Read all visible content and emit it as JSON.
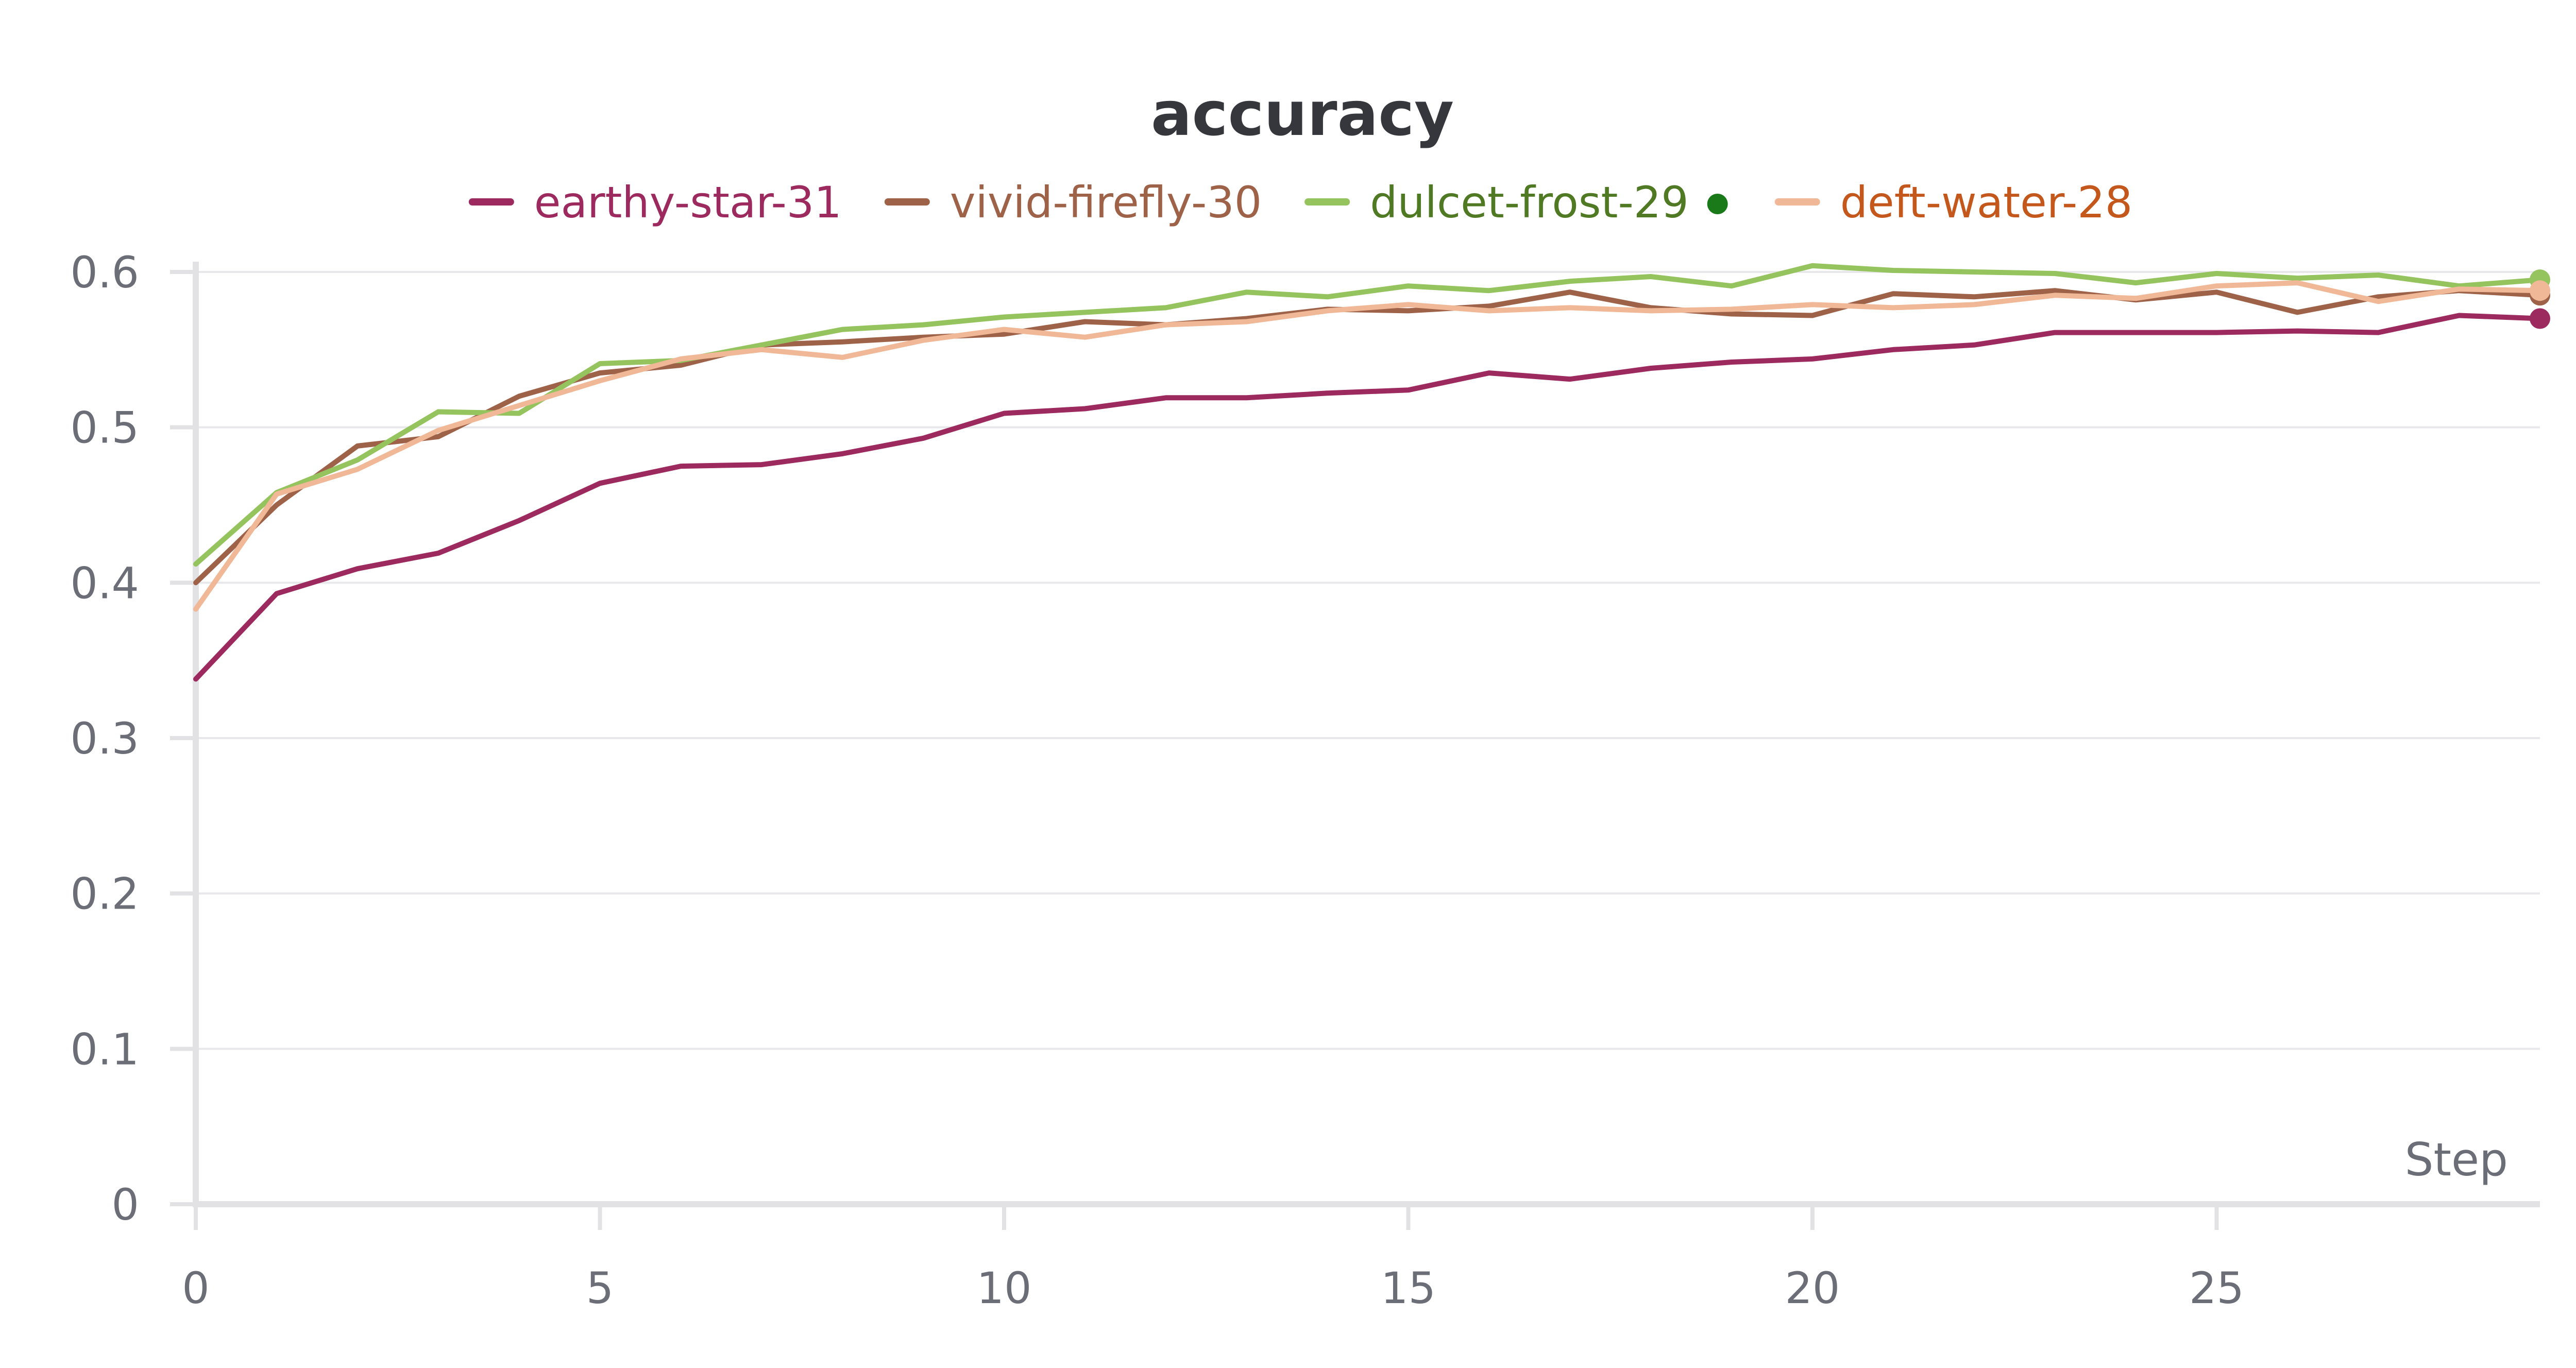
{
  "chart_data": {
    "type": "line",
    "title": "accuracy",
    "xlabel": "Step",
    "ylabel": "",
    "xlim": [
      0,
      29
    ],
    "ylim": [
      0,
      0.6
    ],
    "xticks": [
      0,
      5,
      10,
      15,
      20,
      25
    ],
    "yticks": [
      0,
      0.1,
      0.2,
      0.3,
      0.4,
      0.5,
      0.6
    ],
    "grid": true,
    "legend_position": "top-center",
    "x": [
      0,
      1,
      2,
      3,
      4,
      5,
      6,
      7,
      8,
      9,
      10,
      11,
      12,
      13,
      14,
      15,
      16,
      17,
      18,
      19,
      20,
      21,
      22,
      23,
      24,
      25,
      26,
      27,
      28,
      29
    ],
    "series": [
      {
        "name": "earthy-star-31",
        "color": "#9c2a5e",
        "label_color": "#9c2a5e",
        "values": [
          0.338,
          0.393,
          0.409,
          0.419,
          0.44,
          0.464,
          0.475,
          0.476,
          0.483,
          0.493,
          0.509,
          0.512,
          0.519,
          0.519,
          0.522,
          0.524,
          0.535,
          0.531,
          0.538,
          0.542,
          0.544,
          0.55,
          0.553,
          0.561,
          0.561,
          0.561,
          0.562,
          0.561,
          0.572,
          0.57
        ]
      },
      {
        "name": "vivid-firefly-30",
        "color": "#9e6249",
        "label_color": "#9e6249",
        "values": [
          0.4,
          0.45,
          0.488,
          0.494,
          0.52,
          0.535,
          0.54,
          0.553,
          0.555,
          0.558,
          0.56,
          0.568,
          0.566,
          0.57,
          0.576,
          0.575,
          0.578,
          0.587,
          0.577,
          0.573,
          0.572,
          0.586,
          0.584,
          0.588,
          0.582,
          0.587,
          0.574,
          0.584,
          0.588,
          0.585
        ]
      },
      {
        "name": "dulcet-frost-29",
        "color": "#95c45f",
        "label_color": "#4f7a23",
        "values": [
          0.412,
          0.458,
          0.479,
          0.51,
          0.509,
          0.541,
          0.543,
          0.553,
          0.563,
          0.566,
          0.571,
          0.574,
          0.577,
          0.587,
          0.584,
          0.591,
          0.588,
          0.594,
          0.597,
          0.591,
          0.604,
          0.601,
          0.6,
          0.599,
          0.593,
          0.599,
          0.596,
          0.598,
          0.591,
          0.595
        ]
      },
      {
        "name": "deft-water-28",
        "color": "#f0b896",
        "label_color": "#c4581c",
        "values": [
          0.383,
          0.457,
          0.473,
          0.498,
          0.514,
          0.53,
          0.544,
          0.55,
          0.545,
          0.556,
          0.563,
          0.558,
          0.566,
          0.568,
          0.575,
          0.579,
          0.575,
          0.577,
          0.575,
          0.576,
          0.579,
          0.577,
          0.579,
          0.585,
          0.583,
          0.591,
          0.593,
          0.581,
          0.589,
          0.588
        ]
      }
    ],
    "legend_marker": {
      "series": "dulcet-frost-29",
      "color": "#1a7a1a"
    }
  }
}
